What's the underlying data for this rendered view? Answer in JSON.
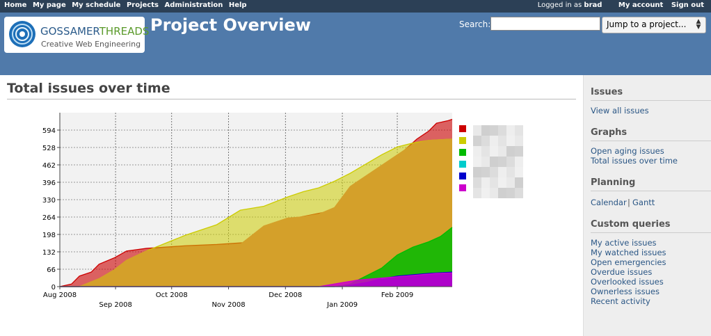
{
  "top_menu": {
    "left": [
      "Home",
      "My page",
      "My schedule",
      "Projects",
      "Administration",
      "Help"
    ],
    "logged_prefix": "Logged in as",
    "user": "brad",
    "my_account": "My account",
    "sign_out": "Sign out"
  },
  "logo": {
    "brand_a": "GOSSAMER",
    "brand_b": "THREADS",
    "tagline": "Creative Web Engineering"
  },
  "header": {
    "project_title": "Project Overview",
    "search_label": "Search:",
    "search_value": "",
    "jump_label": "Jump to a project..."
  },
  "content": {
    "title": "Total issues over time"
  },
  "sidebar": {
    "issues_heading": "Issues",
    "view_all": "View all issues",
    "graphs_heading": "Graphs",
    "aging": "Open aging issues",
    "total_over_time": "Total issues over time",
    "planning_heading": "Planning",
    "calendar": "Calendar",
    "separator": "|",
    "gantt": "Gantt",
    "custom_heading": "Custom queries",
    "queries": [
      "My active issues",
      "My watched issues",
      "Open emergencies",
      "Overdue issues",
      "Overlooked issues",
      "Ownerless issues",
      "Recent activity"
    ]
  },
  "chart_data": {
    "type": "area",
    "x_tick_labels": [
      "Aug 2008",
      "Sep 2008",
      "Oct 2008",
      "Nov 2008",
      "Dec 2008",
      "Jan 2009",
      "Feb 2009"
    ],
    "y_ticks": [
      0,
      66,
      132,
      198,
      264,
      330,
      396,
      462,
      528,
      594
    ],
    "ylim": [
      0,
      660
    ],
    "grid": true,
    "legend_position": "right",
    "colors": {
      "red": "#cc0000",
      "yellow": "#cccc00",
      "green": "#00bb00",
      "cyan": "#00cccc",
      "blue": "#0000cc",
      "magenta": "#cc00cc",
      "orange_fill": "#d4a02a",
      "plot_bg": "#f2f2f2"
    },
    "series": [
      {
        "color": "red",
        "x": [
          0.0,
          0.03,
          0.05,
          0.08,
          0.1,
          0.14,
          0.17,
          0.22,
          0.27,
          0.32,
          0.4,
          0.5,
          0.6,
          0.7,
          0.78,
          0.84,
          0.88,
          0.91,
          0.94,
          0.96,
          0.99,
          1.0
        ],
        "values": [
          0,
          10,
          40,
          55,
          85,
          110,
          135,
          145,
          150,
          155,
          160,
          170,
          260,
          290,
          330,
          420,
          520,
          560,
          590,
          620,
          630,
          635
        ]
      },
      {
        "color": "yellow",
        "x": [
          0.0,
          0.05,
          0.1,
          0.14,
          0.17,
          0.22,
          0.27,
          0.32,
          0.4,
          0.46,
          0.52,
          0.58,
          0.62,
          0.66,
          0.7,
          0.74,
          0.78,
          0.82,
          0.86,
          0.9,
          0.94,
          1.0
        ],
        "values": [
          0,
          0,
          30,
          65,
          100,
          135,
          165,
          195,
          235,
          290,
          305,
          340,
          360,
          375,
          400,
          430,
          465,
          500,
          530,
          545,
          555,
          560
        ]
      },
      {
        "color": "orange_fill",
        "x": [
          0.0,
          0.05,
          0.1,
          0.14,
          0.17,
          0.22,
          0.27,
          0.32,
          0.4,
          0.46,
          0.52,
          0.58,
          0.62,
          0.66,
          0.7,
          0.74,
          0.78,
          0.82,
          0.86,
          0.9,
          0.94,
          1.0
        ],
        "values": [
          0,
          0,
          30,
          65,
          100,
          135,
          145,
          150,
          155,
          160,
          230,
          260,
          265,
          275,
          300,
          380,
          420,
          460,
          500,
          540,
          555,
          560
        ]
      },
      {
        "color": "green",
        "x": [
          0.0,
          0.7,
          0.74,
          0.78,
          0.82,
          0.86,
          0.9,
          0.94,
          0.97,
          1.0
        ],
        "values": [
          0,
          0,
          10,
          40,
          70,
          120,
          150,
          170,
          190,
          225
        ]
      },
      {
        "color": "blue",
        "x": [
          0.0,
          0.72,
          0.78,
          0.82,
          0.86,
          0.9,
          0.94,
          1.0
        ],
        "values": [
          0,
          0,
          15,
          30,
          40,
          45,
          50,
          55
        ]
      },
      {
        "color": "magenta",
        "x": [
          0.0,
          0.66,
          0.68,
          0.72,
          0.76,
          0.8,
          0.84,
          0.88,
          0.92,
          0.96,
          1.0
        ],
        "values": [
          0,
          0,
          5,
          15,
          25,
          30,
          35,
          40,
          45,
          50,
          52
        ]
      }
    ]
  }
}
